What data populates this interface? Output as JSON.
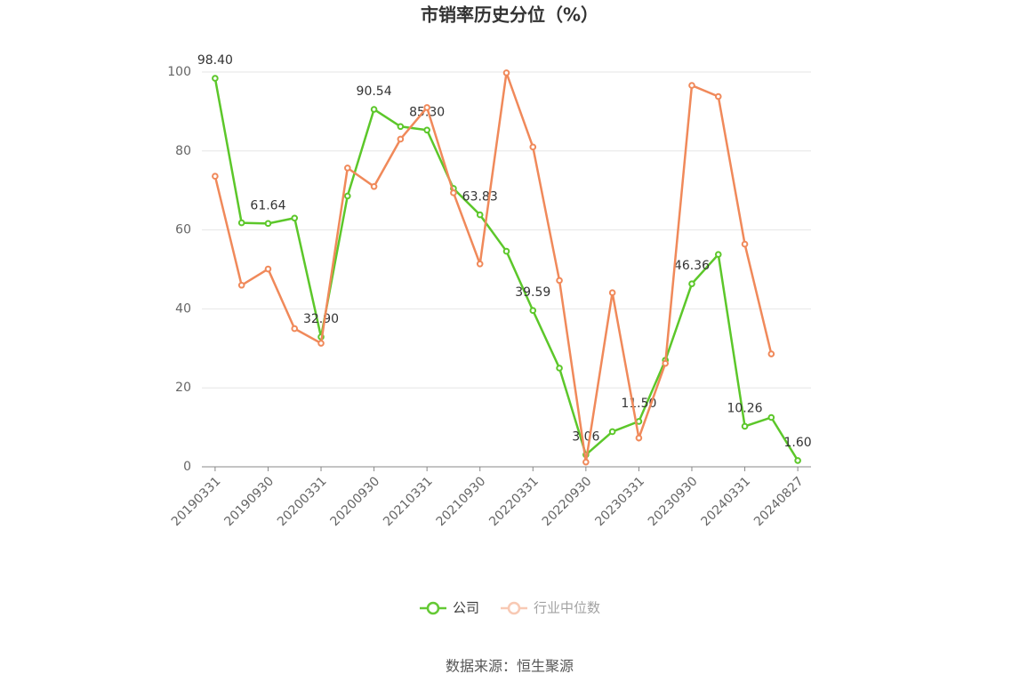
{
  "chart_data": {
    "type": "line",
    "title": "市销率历史分位（%）",
    "categories": [
      "20190331",
      null,
      "20190930",
      null,
      "20200331",
      null,
      "20200930",
      null,
      "20210331",
      null,
      "20210930",
      null,
      "20220331",
      null,
      "20220930",
      null,
      "20230331",
      null,
      "20230930",
      null,
      "20240331",
      null,
      "20240827"
    ],
    "series": [
      {
        "name": "公司",
        "color": "#5cc72a",
        "values": [
          98.4,
          61.8,
          61.64,
          63.0,
          32.9,
          68.6,
          90.54,
          86.2,
          85.3,
          70.5,
          63.83,
          54.6,
          39.59,
          25.0,
          3.06,
          8.9,
          11.5,
          27.0,
          46.36,
          53.8,
          10.26,
          12.5,
          1.6
        ],
        "value_labels": [
          "98.40",
          null,
          "61.64",
          null,
          "32.90",
          null,
          "90.54",
          null,
          "85.30",
          null,
          "63.83",
          null,
          "39.59",
          null,
          "3.06",
          null,
          "11.50",
          null,
          "46.36",
          null,
          "10.26",
          null,
          "1.60"
        ]
      },
      {
        "name": "行业中位数",
        "color": "#f0895a",
        "values": [
          73.6,
          46.0,
          50.1,
          35.0,
          31.3,
          75.7,
          71.0,
          83.0,
          91.0,
          69.4,
          51.4,
          99.8,
          81.0,
          47.2,
          1.2,
          44.1,
          7.3,
          26.2,
          96.6,
          93.8,
          56.4,
          28.6,
          null
        ]
      }
    ],
    "ylim": [
      0,
      100
    ],
    "yticks": [
      0,
      20,
      40,
      60,
      80,
      100
    ],
    "grid": true,
    "legend": "bottom",
    "source": "数据来源：恒生聚源"
  }
}
